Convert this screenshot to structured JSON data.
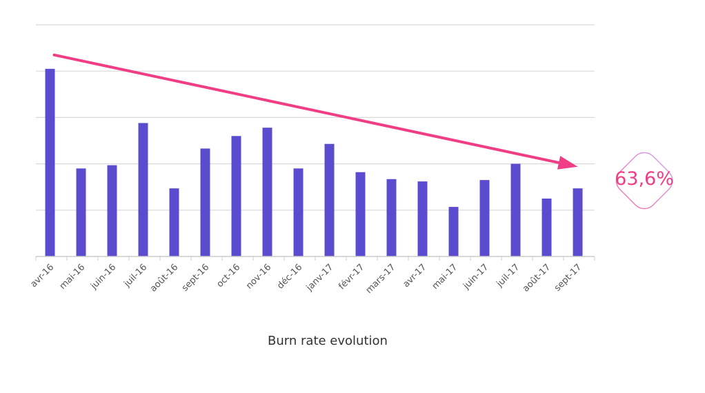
{
  "chart_data": {
    "type": "bar",
    "title": "",
    "xlabel": "",
    "ylabel": "",
    "caption": "Burn rate evolution",
    "categories": [
      "avr-16",
      "mai-16",
      "juin-16",
      "juil-16",
      "août-16",
      "sept-16",
      "oct-16",
      "nov-16",
      "déc-16",
      "janv-17",
      "févr-17",
      "mars-17",
      "avr-17",
      "mai-17",
      "juin-17",
      "juil-17",
      "août-17",
      "sept-17"
    ],
    "values": [
      4.05,
      1.9,
      1.97,
      2.88,
      1.47,
      2.33,
      2.6,
      2.78,
      1.9,
      2.43,
      1.82,
      1.67,
      1.62,
      1.07,
      1.65,
      2.0,
      1.25,
      1.47
    ],
    "ylim": [
      0,
      5
    ],
    "grid": true,
    "bar_color": "#5b4ccf",
    "trend_arrow": {
      "from": [
        "avr-16",
        4.35
      ],
      "to": [
        "sept-17",
        1.95
      ],
      "color": "#f03d85"
    },
    "annotation": {
      "text": "63,6%",
      "color": "#f03d85"
    }
  }
}
